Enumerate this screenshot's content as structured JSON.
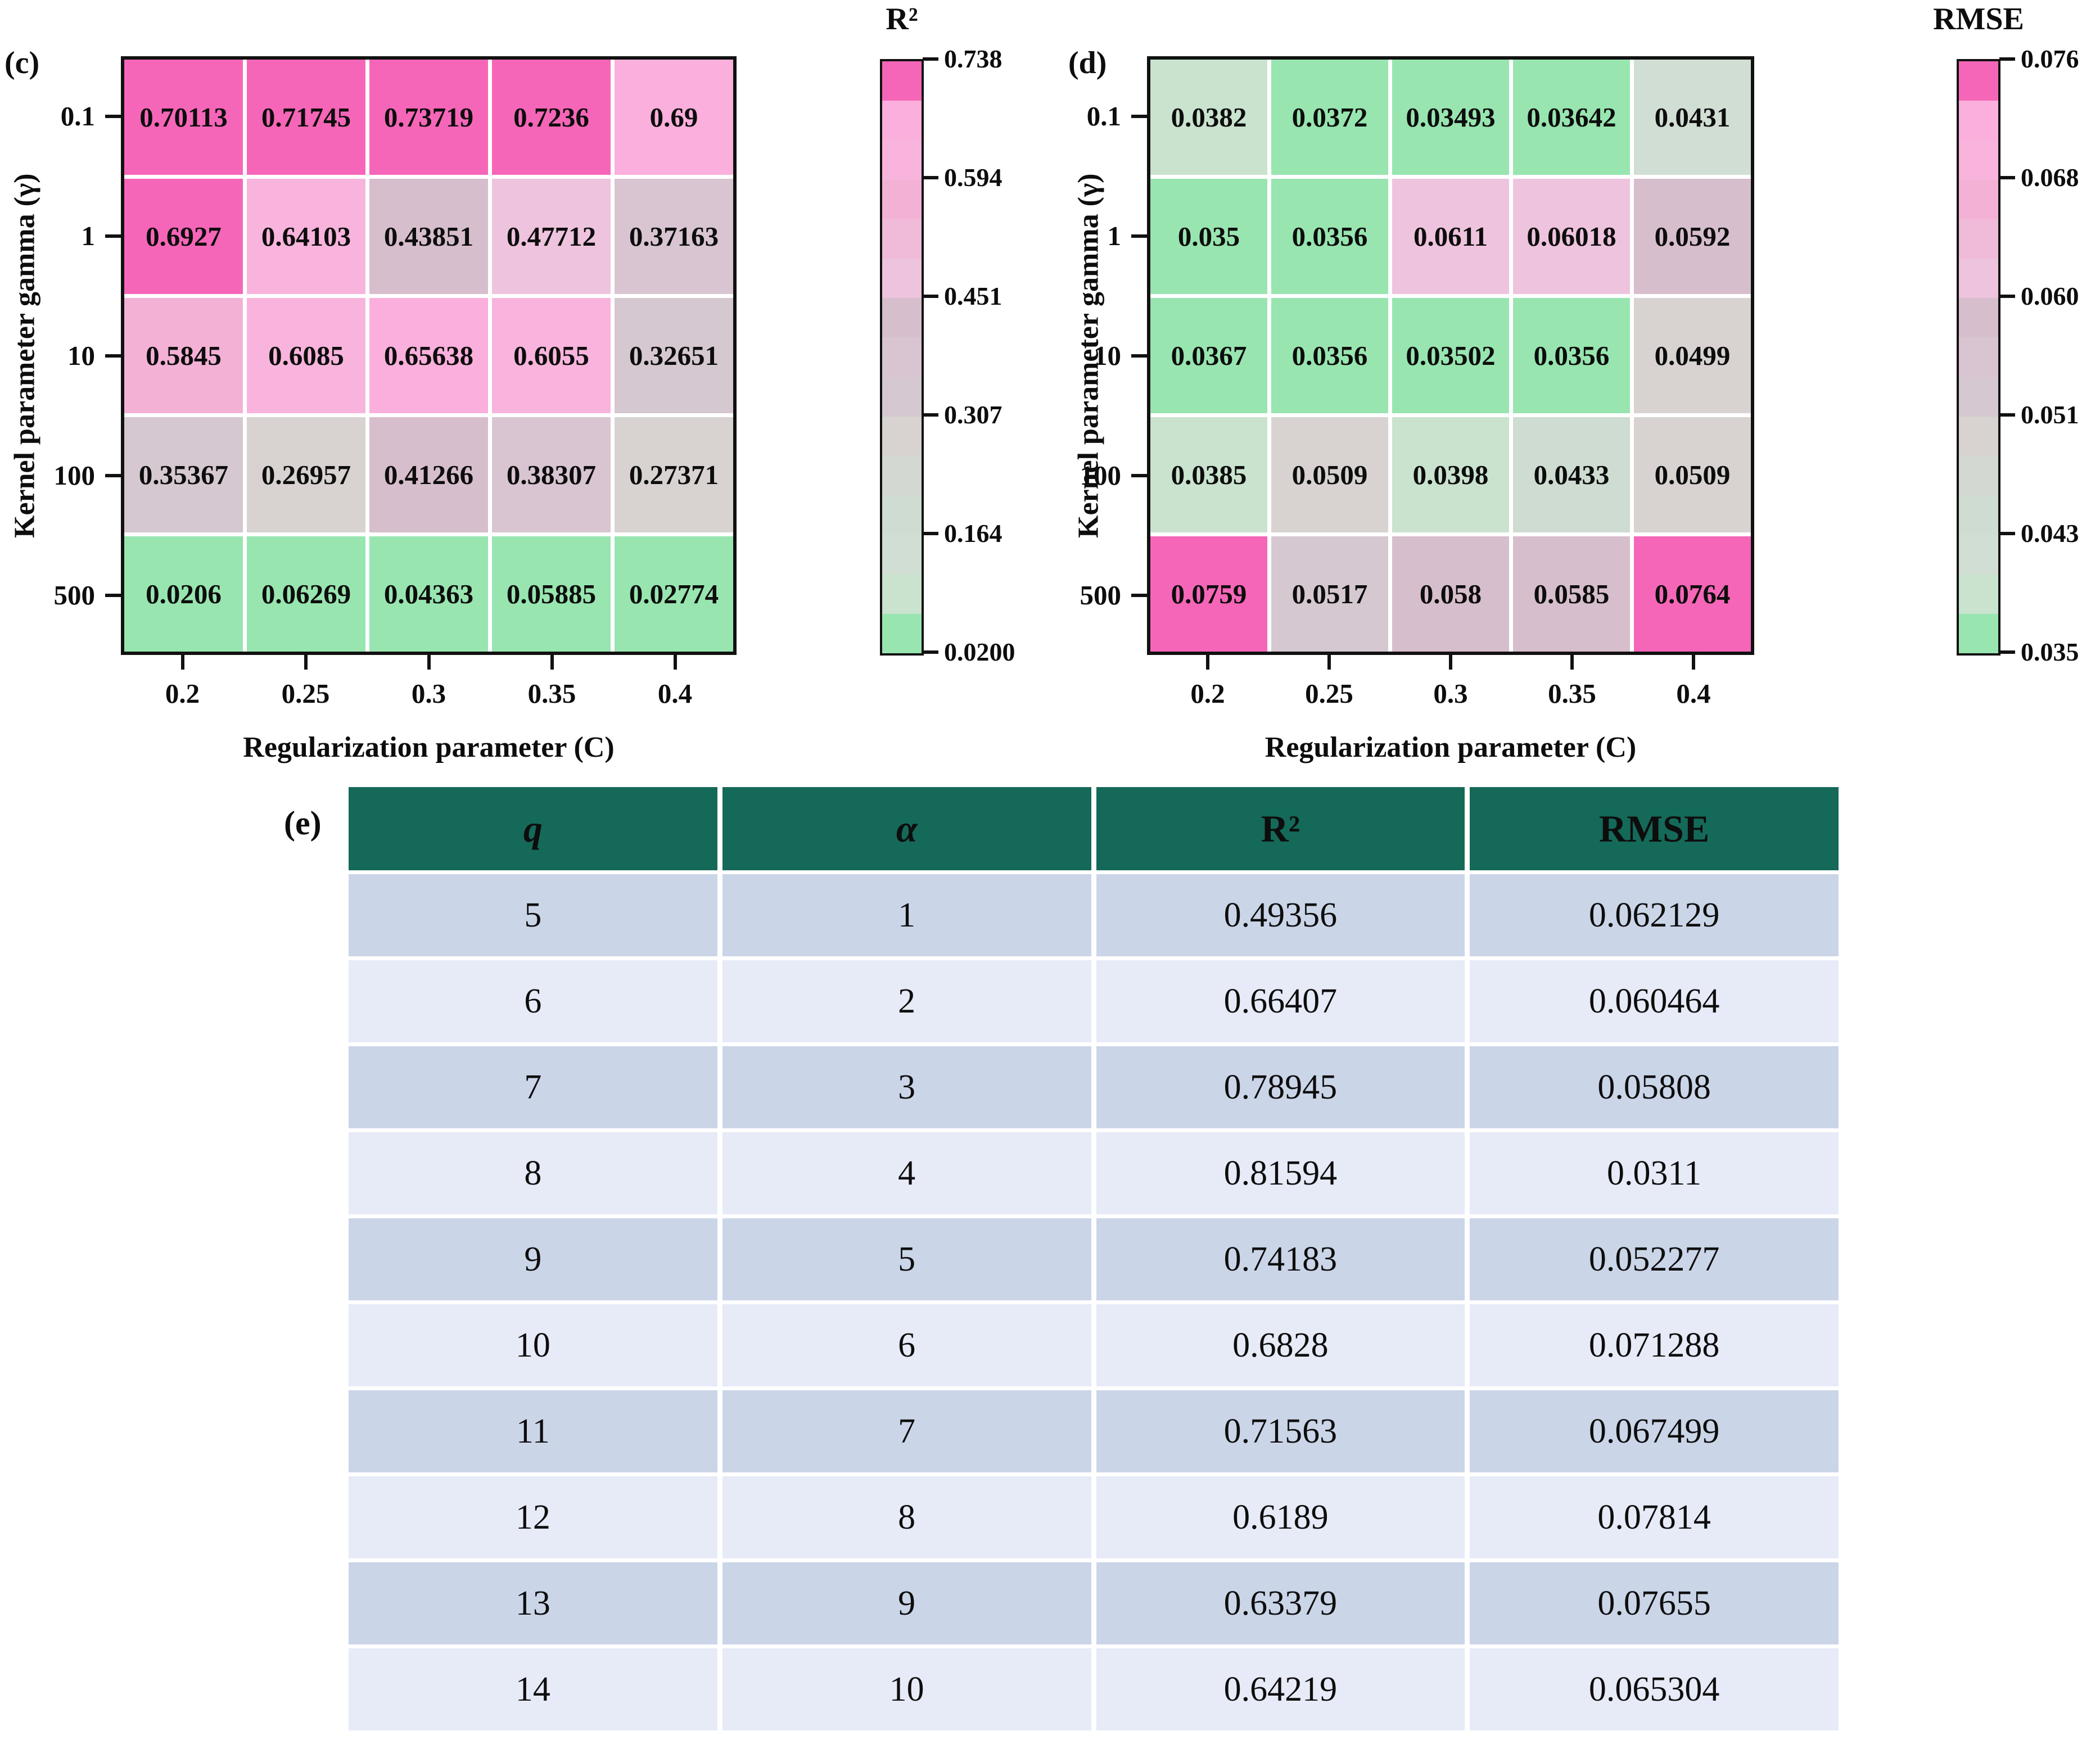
{
  "palette": {
    "levels": [
      "#F666B8",
      "#FBAFDC",
      "#F8B4DC",
      "#F3B1D6",
      "#F0BAD9",
      "#EEC3DD",
      "#D7BECC",
      "#D8C5D1",
      "#D5C8D0",
      "#D8D3D1",
      "#D3D8D2",
      "#CFDCD1",
      "#D1DED3",
      "#C9E3CE",
      "#98E5B0"
    ],
    "table_header_bg": "#156958",
    "table_row_odd": "#CBD5E8",
    "table_row_even": "#E7EAF7",
    "axis_color": "#111111"
  },
  "chart_data": [
    {
      "type": "heatmap",
      "panel": "(c)",
      "colorbar_title": "R²",
      "xlabel": "Regularization parameter (C)",
      "ylabel": "Kernel parameter gamma (γ)",
      "x_ticks": [
        "0.2",
        "0.25",
        "0.3",
        "0.35",
        "0.4"
      ],
      "y_ticks": [
        "0.1",
        "1",
        "10",
        "100",
        "500"
      ],
      "values": [
        [
          "0.70113",
          "0.71745",
          "0.73719",
          "0.7236",
          "0.69"
        ],
        [
          "0.6927",
          "0.64103",
          "0.43851",
          "0.47712",
          "0.37163"
        ],
        [
          "0.5845",
          "0.6085",
          "0.65638",
          "0.6055",
          "0.32651"
        ],
        [
          "0.35367",
          "0.26957",
          "0.41266",
          "0.38307",
          "0.27371"
        ],
        [
          "0.0206",
          "0.06269",
          "0.04363",
          "0.05885",
          "0.02774"
        ]
      ],
      "vmin": 0.02,
      "vmax": 0.738,
      "colorbar_ticks": [
        "0.738",
        "0.594",
        "0.451",
        "0.307",
        "0.164",
        "0.0200"
      ],
      "legend_position": "right",
      "grid": true
    },
    {
      "type": "heatmap",
      "panel": "(d)",
      "colorbar_title": "RMSE",
      "xlabel": "Regularization parameter (C)",
      "ylabel": "Kernel parameter gamma (γ)",
      "x_ticks": [
        "0.2",
        "0.25",
        "0.3",
        "0.35",
        "0.4"
      ],
      "y_ticks": [
        "0.1",
        "1",
        "10",
        "100",
        "500"
      ],
      "values": [
        [
          "0.0382",
          "0.0372",
          "0.03493",
          "0.03642",
          "0.0431"
        ],
        [
          "0.035",
          "0.0356",
          "0.0611",
          "0.06018",
          "0.0592"
        ],
        [
          "0.0367",
          "0.0356",
          "0.03502",
          "0.0356",
          "0.0499"
        ],
        [
          "0.0385",
          "0.0509",
          "0.0398",
          "0.0433",
          "0.0509"
        ],
        [
          "0.0759",
          "0.0517",
          "0.058",
          "0.0585",
          "0.0764"
        ]
      ],
      "vmin": 0.035,
      "vmax": 0.076,
      "colorbar_ticks": [
        "0.076",
        "0.068",
        "0.060",
        "0.051",
        "0.043",
        "0.035"
      ],
      "legend_position": "right",
      "grid": true
    },
    {
      "type": "table",
      "panel": "(e)",
      "headers": [
        "q",
        "α",
        "R²",
        "RMSE"
      ],
      "rows": [
        [
          "5",
          "1",
          "0.49356",
          "0.062129"
        ],
        [
          "6",
          "2",
          "0.66407",
          "0.060464"
        ],
        [
          "7",
          "3",
          "0.78945",
          "0.05808"
        ],
        [
          "8",
          "4",
          "0.81594",
          "0.0311"
        ],
        [
          "9",
          "5",
          "0.74183",
          "0.052277"
        ],
        [
          "10",
          "6",
          "0.6828",
          "0.071288"
        ],
        [
          "11",
          "7",
          "0.71563",
          "0.067499"
        ],
        [
          "12",
          "8",
          "0.6189",
          "0.07814"
        ],
        [
          "13",
          "9",
          "0.63379",
          "0.07655"
        ],
        [
          "14",
          "10",
          "0.64219",
          "0.065304"
        ]
      ]
    }
  ]
}
